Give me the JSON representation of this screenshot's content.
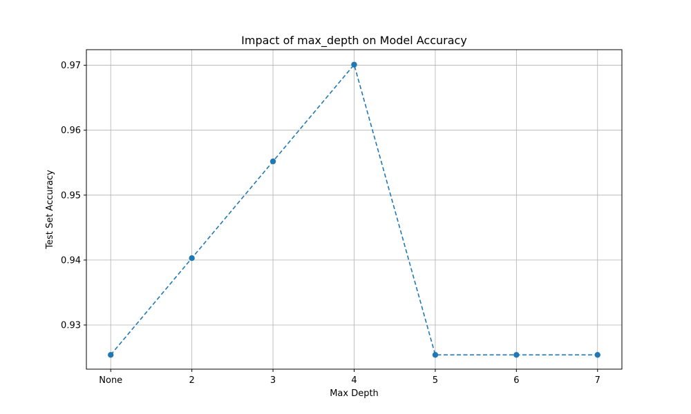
{
  "chart_data": {
    "type": "line",
    "title": "Impact of max_depth on Model Accuracy",
    "xlabel": "Max Depth",
    "ylabel": "Test Set Accuracy",
    "categories": [
      "None",
      "2",
      "3",
      "4",
      "5",
      "6",
      "7"
    ],
    "series": [
      {
        "values": [
          0.9254,
          0.9403,
          0.9552,
          0.9701,
          0.9254,
          0.9254,
          0.9254
        ],
        "color": "#1f77b4",
        "line_style": "dashed",
        "marker": "circle"
      }
    ],
    "ylim": [
      0.9232,
      0.9724
    ],
    "yticks": [
      0.93,
      0.94,
      0.95,
      0.96,
      0.97
    ],
    "ytick_labels": [
      "0.93",
      "0.94",
      "0.95",
      "0.96",
      "0.97"
    ],
    "grid": true,
    "legend": "none"
  }
}
